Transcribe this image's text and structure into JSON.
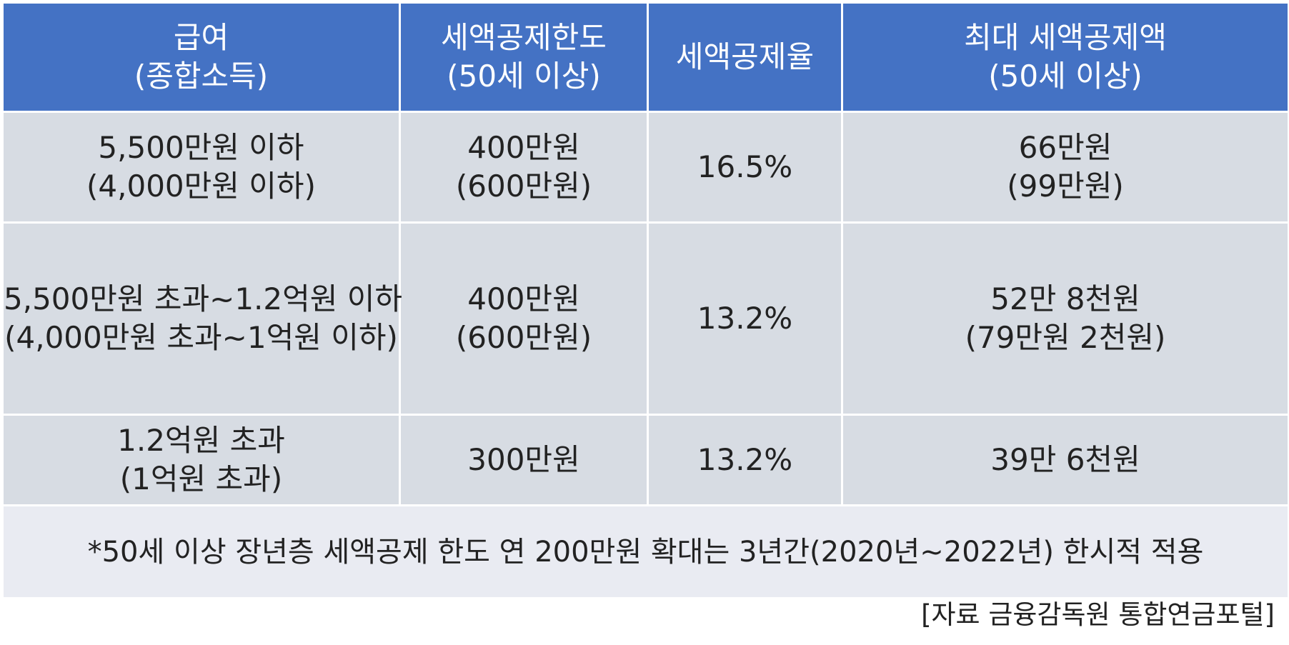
{
  "header": {
    "col1": [
      "급여",
      "(종합소득)"
    ],
    "col2": [
      "세액공제한도",
      "(50세 이상)"
    ],
    "col3": [
      "세액공제율"
    ],
    "col4": [
      "최대 세액공제액",
      "(50세 이상)"
    ]
  },
  "rows": [
    {
      "salary": [
        "5,500만원 이하",
        "(4,000만원 이하)"
      ],
      "limit": [
        "400만원",
        "(600만원)"
      ],
      "rate": "16.5%",
      "max": [
        "66만원",
        "(99만원)"
      ]
    },
    {
      "salary": [
        "5,500만원 초과~1.2억원 이하",
        "(4,000만원 초과~1억원 이하)"
      ],
      "limit": [
        "400만원",
        "(600만원)"
      ],
      "rate": "13.2%",
      "max": [
        "52만 8천원",
        "(79만원 2천원)"
      ]
    },
    {
      "salary": [
        "1.2억원 초과",
        "(1억원 초과)"
      ],
      "limit": [
        "300만원"
      ],
      "rate": "13.2%",
      "max": [
        "39만 6천원"
      ]
    }
  ],
  "note": "*50세 이상 장년층 세액공제 한도 연 200만원 확대는 3년간(2020년~2022년) 한시적 적용",
  "source": "[자료 금융감독원 통합연금포털]",
  "colors": {
    "header_bg": "#4472c4",
    "cell_bg": "#d7dce3",
    "note_bg": "#e9ebf2"
  }
}
